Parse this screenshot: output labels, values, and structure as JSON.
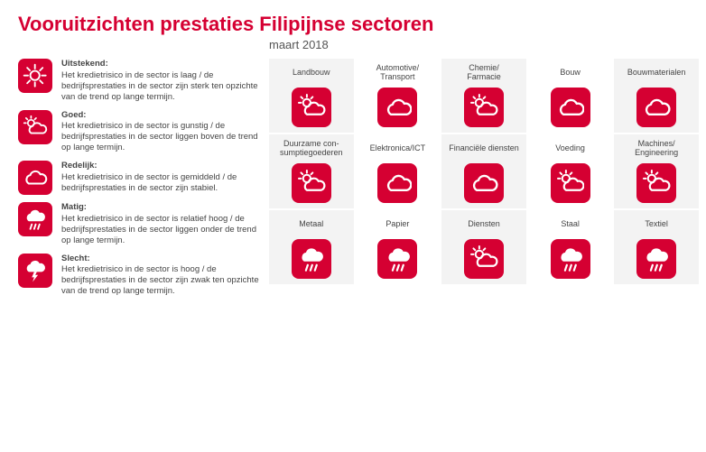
{
  "title": "Vooruitzichten prestaties Filipijnse sectoren",
  "subtitle": "maart 2018",
  "colors": {
    "brand": "#d50032",
    "ink": "#ffffff",
    "legend_text": "#444444"
  },
  "icon_types": {
    "uitstekend": "sun",
    "goed": "sun-cloud",
    "redelijk": "cloud",
    "matig": "rain",
    "slecht": "storm"
  },
  "legend": [
    {
      "label": "Uitstekend:",
      "icon": "sun",
      "desc": "Het kredietrisico in de sector is laag / de bedrijfsprestaties in de sector zijn sterk ten opzichte van de trend op lange termijn."
    },
    {
      "label": "Goed:",
      "icon": "sun-cloud",
      "desc": "Het kredietrisico in de sector is gunstig / de bedrijfsprestaties in de sector liggen boven de trend op lange termijn."
    },
    {
      "label": "Redelijk:",
      "icon": "cloud",
      "desc": "Het kredietrisico in de sector is gemiddeld / de bedrijfsprestaties in de sector zijn stabiel."
    },
    {
      "label": "Matig:",
      "icon": "rain",
      "desc": "Het kredietrisico in de sector is relatief hoog / de bedrijfsprestaties in de sector liggen onder de trend op lange termijn."
    },
    {
      "label": "Slecht:",
      "icon": "storm",
      "desc": "Het kredietrisico in de sector is hoog / de bedrijfsprestaties in de sector zijn zwak ten opzichte van de trend op lange termijn."
    }
  ],
  "grid": [
    [
      {
        "label": "Landbouw",
        "icon": "sun-cloud"
      },
      {
        "label": "Automotive/\nTransport",
        "icon": "cloud"
      },
      {
        "label": "Chemie/\nFarmacie",
        "icon": "sun-cloud"
      },
      {
        "label": "Bouw",
        "icon": "cloud"
      },
      {
        "label": "Bouwmaterialen",
        "icon": "cloud"
      }
    ],
    [
      {
        "label": "Duurzame con-\nsumptiegoederen",
        "icon": "sun-cloud"
      },
      {
        "label": "Elektronica/ICT",
        "icon": "cloud"
      },
      {
        "label": "Financiële diensten",
        "icon": "cloud"
      },
      {
        "label": "Voeding",
        "icon": "sun-cloud"
      },
      {
        "label": "Machines/\nEngineering",
        "icon": "sun-cloud"
      }
    ],
    [
      {
        "label": "Metaal",
        "icon": "rain"
      },
      {
        "label": "Papier",
        "icon": "rain"
      },
      {
        "label": "Diensten",
        "icon": "sun-cloud"
      },
      {
        "label": "Staal",
        "icon": "rain"
      },
      {
        "label": "Textiel",
        "icon": "rain"
      }
    ]
  ]
}
